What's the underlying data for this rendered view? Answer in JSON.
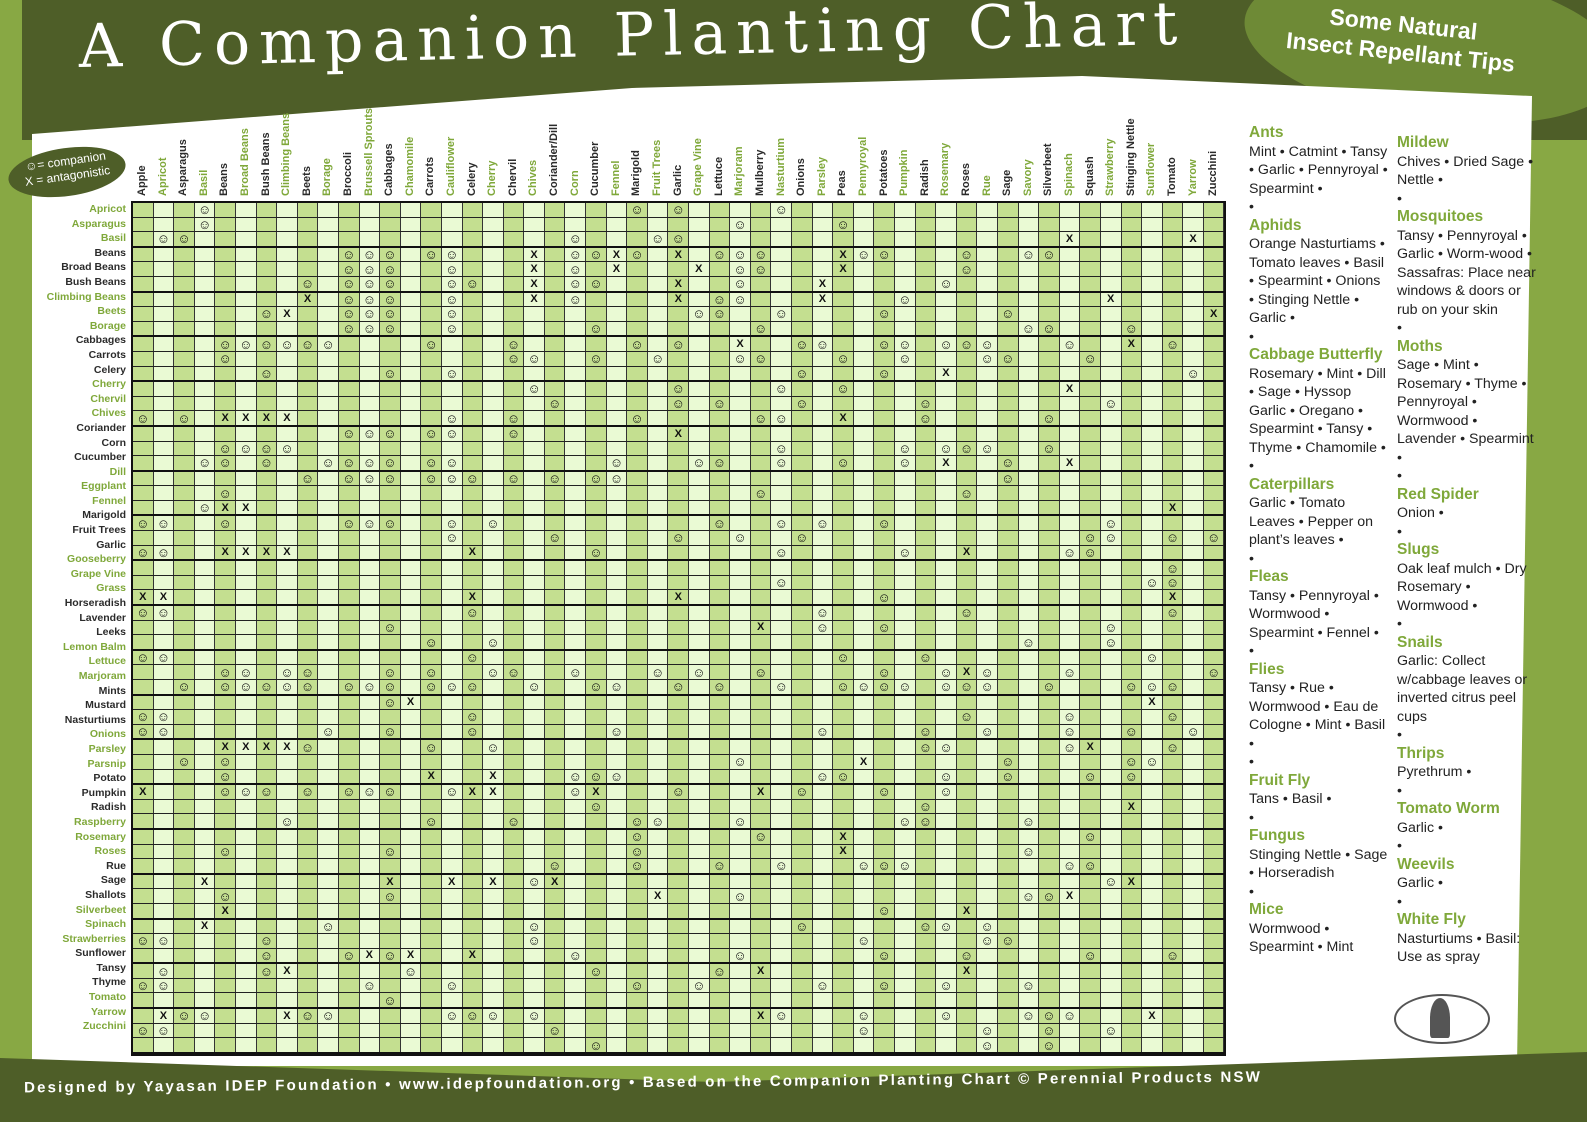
{
  "header": {
    "title": "A Companion Planting Chart",
    "tips_title_line1": "Some Natural",
    "tips_title_line2": "Insect Repellant Tips"
  },
  "legend": {
    "companion": "☺= companion",
    "antagonistic": "X = antagonistic"
  },
  "footer": {
    "text": "Designed by Yayasan IDEP Foundation • www.idepfoundation.org • Based on the Companion Planting Chart © Perennial Products NSW"
  },
  "colors": {
    "banner_dark_green": "#4e5e28",
    "accent_green": "#88a844",
    "label_green": "#7fa83a",
    "cell_dark": "#c4df90",
    "cell_light": "#eafad4"
  },
  "chart_data": {
    "type": "table",
    "title": "A Companion Planting Chart",
    "legend": {
      "C": "companion (smiley)",
      "X": "antagonistic"
    },
    "columns": [
      "Apple",
      "Apricot",
      "Asparagus",
      "Basil",
      "Beans",
      "Broad Beans",
      "Bush Beans",
      "Climbing Beans",
      "Beets",
      "Borage",
      "Broccoli",
      "Brussell Sprouts",
      "Cabbages",
      "Chamomile",
      "Carrots",
      "Cauliflower",
      "Celery",
      "Cherry",
      "Chervil",
      "Chives",
      "Coriander/Dill",
      "Corn",
      "Cucumber",
      "Fennel",
      "Marigold",
      "Fruit Trees",
      "Garlic",
      "Grape Vine",
      "Lettuce",
      "Marjoram",
      "Mulberry",
      "Nasturtium",
      "Onions",
      "Parsley",
      "Peas",
      "Pennyroyal",
      "Potatoes",
      "Pumpkin",
      "Radish",
      "Rosemary",
      "Roses",
      "Rue",
      "Sage",
      "Savory",
      "Silverbeet",
      "Spinach",
      "Squash",
      "Strawberry",
      "Stinging Nettle",
      "Sunflower",
      "Tomato",
      "Yarrow",
      "Zucchini"
    ],
    "column_green": [
      false,
      true,
      false,
      true,
      false,
      true,
      false,
      true,
      false,
      true,
      false,
      true,
      false,
      true,
      false,
      true,
      false,
      true,
      false,
      true,
      false,
      true,
      false,
      true,
      false,
      true,
      false,
      true,
      false,
      true,
      false,
      true,
      false,
      true,
      false,
      true,
      false,
      true,
      false,
      true,
      false,
      true,
      false,
      true,
      false,
      true,
      false,
      true,
      false,
      true,
      false,
      true,
      false
    ],
    "rows": [
      {
        "name": "Apricot",
        "green": true,
        "cells": "...C....................C.C....C.....................CCXC."
      },
      {
        "name": "Asparagus",
        "green": true,
        "cells": "...C.........................C....C...........................C.."
      },
      {
        "name": "Basil",
        "green": true,
        "cells": ".CC..................C...CC..................X.....X.......C.."
      },
      {
        "name": "Beans",
        "green": false,
        "cells": "..........CCC.CC...X.CCXC.X.CCC...XCC...C..CC..........."
      },
      {
        "name": "Broad Beans",
        "green": false,
        "cells": "..........CCC..C...X.C.X...X.CC...X.....C.................."
      },
      {
        "name": "Bush Beans",
        "green": false,
        "cells": "........C.CCC..CC..X.CC...X..C...X.....C.............C..C.."
      },
      {
        "name": "Climbing Beans",
        "green": true,
        "cells": "........X.CCC..C...X.C....X.CC...X...C.........X.........."
      },
      {
        "name": "Beets",
        "green": true,
        "cells": "......CX..CCC..C...........CC..C....C.....C.........X.."
      },
      {
        "name": "Borage",
        "green": true,
        "cells": "..........CCC..C......C.......C............CC...C.."
      },
      {
        "name": "Cabbages",
        "green": false,
        "cells": "....CCCCCC....C...C.....C.C..X..CC..CC.CCC...C..X.C......X..X.."
      },
      {
        "name": "Carrots",
        "green": false,
        "cells": "....C.............CC..C..C...CC...C..C...CC...C..........C.."
      },
      {
        "name": "Celery",
        "green": false,
        "cells": "......C.....C..C................C...C..X...........C.."
      },
      {
        "name": "Cherry",
        "green": true,
        "cells": "...................C......C....C..C..........X.......CC...."
      },
      {
        "name": "Chervil",
        "green": true,
        "cells": "....................C.....C.C...C.....C........C..........C"
      },
      {
        "name": "Chives",
        "green": true,
        "cells": "C.C.XXXX.......C..C.....C.....CC..X...C.....C..........C.."
      },
      {
        "name": "Coriander",
        "green": false,
        "cells": "..........CCC.CC..C.......X......................................."
      },
      {
        "name": "Corn",
        "green": false,
        "cells": "....CCCC.......................C.....C.CCC..C.........C.......C"
      },
      {
        "name": "Cucumber",
        "green": false,
        "cells": "...CC.C..CCCC.CC.......C...CC..C..C..C.X..C..X.........C.."
      },
      {
        "name": "Dill",
        "green": true,
        "cells": "........C.CCC.CCC.C.C.CC..................C.."
      },
      {
        "name": "Eggplant",
        "green": true,
        "cells": "....C.........................C.........C........"
      },
      {
        "name": "Fennel",
        "green": true,
        "cells": "...CXX............................................X.."
      },
      {
        "name": "Marigold",
        "green": false,
        "cells": "CC..C.....CCC..C.C..........C..C.C..C..........C........C..C.."
      },
      {
        "name": "Fruit Trees",
        "green": false,
        "cells": "...............C....C.....C..C..C.............CC..C.C.........C"
      },
      {
        "name": "Garlic",
        "green": false,
        "cells": "CC..XXXX........X.....C........C.....C..X....CC......X..C.."
      },
      {
        "name": "Gooseberry",
        "green": true,
        "cells": "..................................................C.."
      },
      {
        "name": "Grape Vine",
        "green": true,
        "cells": "...............................C.................CC."
      },
      {
        "name": "Grass",
        "green": true,
        "cells": "XX..............X.........X.........C.............X............C"
      },
      {
        "name": "Horseradish",
        "green": false,
        "cells": "CC..............C................C......C.........C......."
      },
      {
        "name": "Lavender",
        "green": false,
        "cells": "............C.................X..C..C..........C..........C..C.."
      },
      {
        "name": "Leeks",
        "green": false,
        "cells": "..............C..C.........................C...C...................."
      },
      {
        "name": "Lemon Balm",
        "green": true,
        "cells": "CC..............C.................C...C..........C........"
      },
      {
        "name": "Lettuce",
        "green": true,
        "cells": "....CC.CC...C.C..CC..C...C.C..C.....C..CXC...C......C......"
      },
      {
        "name": "Marjoram",
        "green": true,
        "cells": "..C.CCCCC.CCC.CCC..C..CC..C.C..C..CCCC.CCC..C...CCC..C..C"
      },
      {
        "name": "Mints",
        "green": false,
        "cells": "............CX...................................X.........C.."
      },
      {
        "name": "Mustard",
        "green": false,
        "cells": "CC..............C.......................C....C....C......"
      },
      {
        "name": "Nasturtiums",
        "green": false,
        "cells": "CC.......C..C...C......C.........C....C..C...C..C..C....C....C.C"
      },
      {
        "name": "Onions",
        "green": true,
        "cells": "....XXXXC.....C..C....................CC.....CX...C...CC...C...C.."
      },
      {
        "name": "Parsley",
        "green": true,
        "cells": "..C.C........................C.....X......C.....CC..........C.."
      },
      {
        "name": "Parsnip",
        "green": true,
        "cells": "....C.........X..X...CCC.........CC....C..C...C.C......C..........C.."
      },
      {
        "name": "Potato",
        "green": false,
        "cells": "X...CCC.C.CCC..CXX...CX...C...X.C...C..C.........................."
      },
      {
        "name": "Pumpkin",
        "green": false,
        "cells": "......................C...............C.........X............."
      },
      {
        "name": "Radish",
        "green": false,
        "cells": ".......C......C...C.....CC...C.......CC....C........................."
      },
      {
        "name": "Raspberry",
        "green": true,
        "cells": "........................C.....C...X...........C........................"
      },
      {
        "name": "Rosemary",
        "green": true,
        "cells": "....C.......C...........C.........X........C..........X..."
      },
      {
        "name": "Roses",
        "green": true,
        "cells": "....................C...C...C..C...CCC.......CC.............."
      },
      {
        "name": "Rue",
        "green": false,
        "cells": "...X........X..X.X.CX..........................CX......."
      },
      {
        "name": "Sage",
        "green": false,
        "cells": "....C.......C............X...C.............CCX........C..."
      },
      {
        "name": "Shallots",
        "green": false,
        "cells": "....X...............................C...X........................"
      },
      {
        "name": "Silverbeet",
        "green": true,
        "cells": "...X.....C.........C............C.....CC.C......................"
      },
      {
        "name": "Spinach",
        "green": true,
        "cells": "CC....C............C...............C.....CC................C..."
      },
      {
        "name": "Strawberries",
        "green": true,
        "cells": "......C...CXCX..X....C.......C......C...C.....C...C...C........"
      },
      {
        "name": "Sunflower",
        "green": false,
        "cells": ".C....CX.....C........C.....C.X.........X...............C.........."
      },
      {
        "name": "Tansy",
        "green": false,
        "cells": "CC.........C...C........C..C.....C..C..C...C...............C....C..C"
      },
      {
        "name": "Thyme",
        "green": false,
        "cells": "............C..........................................C..........."
      },
      {
        "name": "Tomato",
        "green": true,
        "cells": ".XCC...XCC.....CCC.C..........XC...C...C...CCC...X...X.....C........"
      },
      {
        "name": "Yarrow",
        "green": true,
        "cells": "CC..................C..............C.....C..C..C..........."
      },
      {
        "name": "Zucchini",
        "green": true,
        "cells": "......................C..................C..C........................."
      }
    ]
  },
  "tips": {
    "col1": [
      {
        "heading": "Ants",
        "body": "Mint • Catmint • Tansy • Garlic • Pennyroyal • Spearmint •"
      },
      {
        "heading": "Aphids",
        "body": "Orange Nasturtiams • Tomato leaves • Basil • Spearmint • Onions • Stinging Nettle • Garlic •"
      },
      {
        "heading": "Cabbage Butterfly",
        "body": "Rosemary • Mint • Dill • Sage • Hyssop Garlic • Oregano • Spearmint • Tansy • Thyme • Chamomile •"
      },
      {
        "heading": "Caterpillars",
        "body": "Garlic • Tomato Leaves • Pepper on plant’s leaves •"
      },
      {
        "heading": "Fleas",
        "body": "Tansy • Pennyroyal • Wormwood • Spearmint • Fennel •"
      },
      {
        "heading": "Flies",
        "body": "Tansy • Rue • Wormwood • Eau de Cologne • Mint • Basil •"
      },
      {
        "heading": "Fruit Fly",
        "body": "Tans • Basil •"
      },
      {
        "heading": "Fungus",
        "body": "Stinging Nettle • Sage • Horseradish"
      },
      {
        "heading": "Mice",
        "body": "Wormwood • Spearmint • Mint"
      }
    ],
    "col2": [
      {
        "heading": "Mildew",
        "body": "Chives • Dried Sage • Nettle •"
      },
      {
        "heading": "Mosquitoes",
        "body": "Tansy • Pennyroyal • Garlic • Worm-wood • Sassafras: Place near windows & doors or rub on your skin"
      },
      {
        "heading": "Moths",
        "body": "Sage • Mint • Rosemary • Thyme • Pennyroyal • Wormwood • Lavender • Spearmint •"
      },
      {
        "heading": "Red Spider",
        "body": "Onion •"
      },
      {
        "heading": "Slugs",
        "body": "Oak leaf mulch • Dry Rosemary • Wormwood •"
      },
      {
        "heading": "Snails",
        "body": "Garlic: Collect w/cabbage leaves or inverted citrus peel cups"
      },
      {
        "heading": "Thrips",
        "body": "Pyrethrum •"
      },
      {
        "heading": "Tomato Worm",
        "body": "Garlic •"
      },
      {
        "heading": "Weevils",
        "body": "Garlic •"
      },
      {
        "heading": "White Fly",
        "body": "Nasturtiums • Basil: Use as spray"
      }
    ]
  }
}
